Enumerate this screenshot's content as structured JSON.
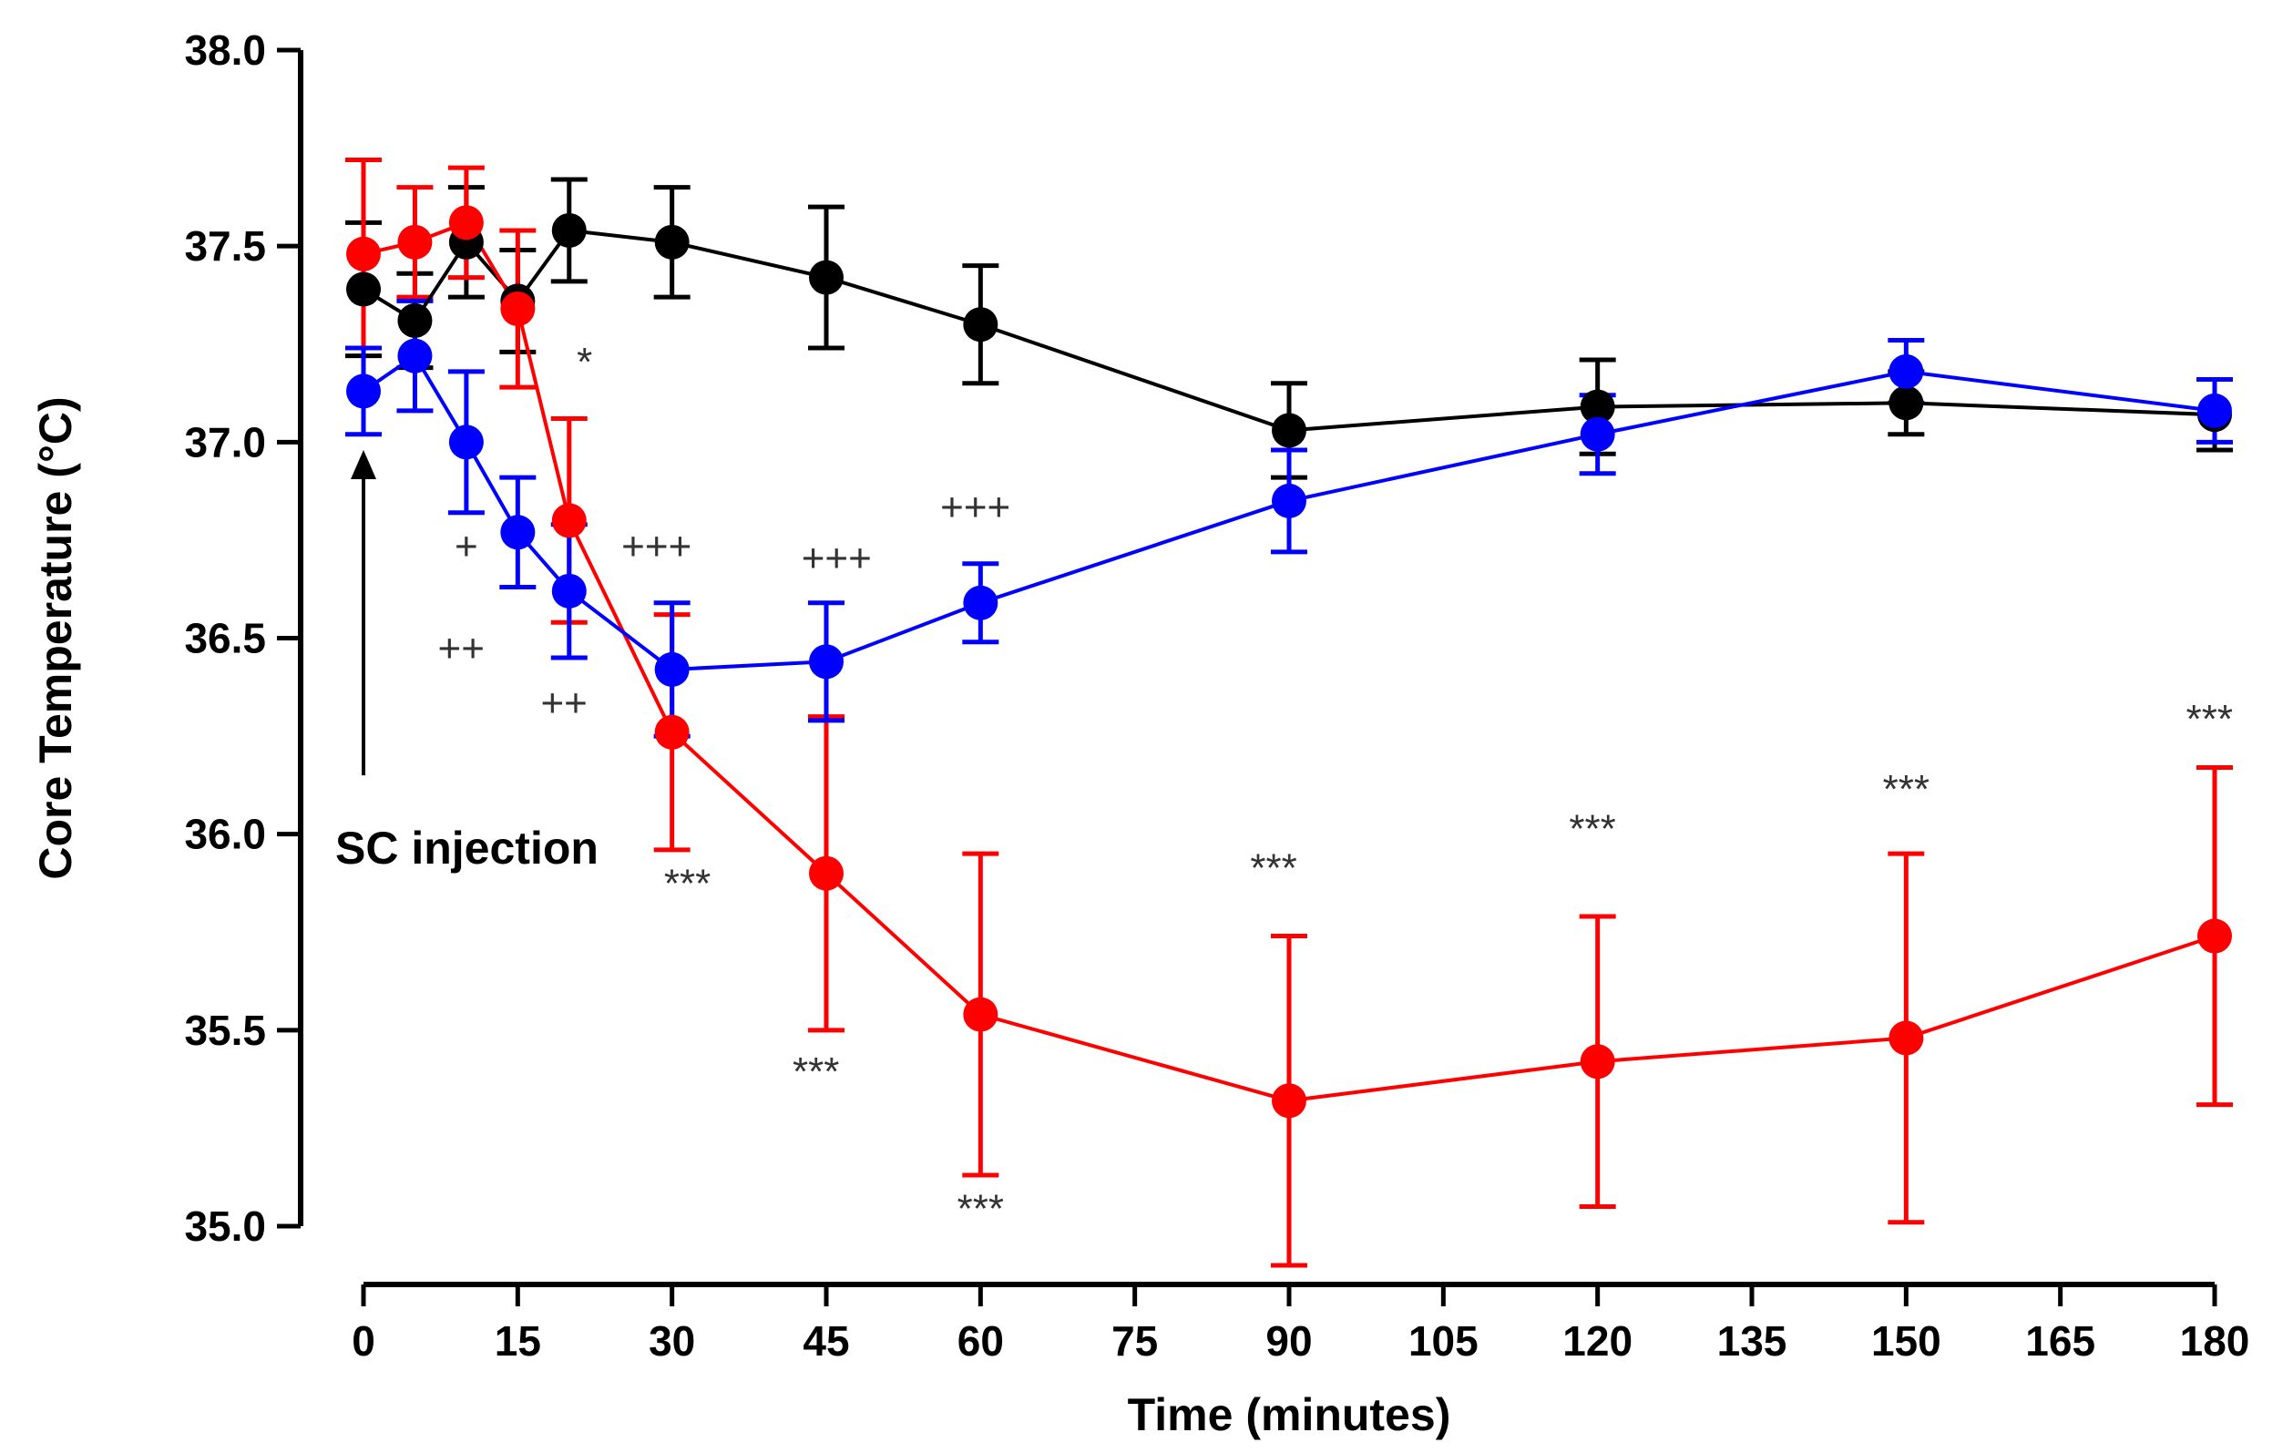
{
  "chart_data": {
    "type": "line",
    "title": "",
    "xlabel": "Time (minutes)",
    "ylabel": "Core Temperature (°C)",
    "xlim": [
      0,
      180
    ],
    "ylim": [
      35.0,
      38.0
    ],
    "xticks": [
      0,
      15,
      30,
      45,
      60,
      75,
      90,
      105,
      120,
      135,
      150,
      165,
      180
    ],
    "yticks": [
      35.0,
      35.5,
      36.0,
      36.5,
      37.0,
      37.5,
      38.0
    ],
    "ytick_labels": [
      "35.0",
      "35.5",
      "36.0",
      "36.5",
      "37.0",
      "37.5",
      "38.0"
    ],
    "grid": false,
    "legend": "none",
    "series": [
      {
        "color": "#000000",
        "x": [
          0,
          5,
          10,
          15,
          20,
          30,
          45,
          60,
          90,
          120,
          150,
          180
        ],
        "y": [
          37.39,
          37.31,
          37.51,
          37.36,
          37.54,
          37.51,
          37.42,
          37.3,
          37.03,
          37.09,
          37.1,
          37.07
        ],
        "err": [
          0.17,
          0.12,
          0.14,
          0.13,
          0.13,
          0.14,
          0.18,
          0.15,
          0.12,
          0.12,
          0.08,
          0.09
        ]
      },
      {
        "color": "#ff0000",
        "x": [
          0,
          5,
          10,
          15,
          20,
          30,
          45,
          60,
          90,
          120,
          150,
          180
        ],
        "y": [
          37.48,
          37.51,
          37.56,
          37.34,
          36.8,
          36.26,
          35.9,
          35.54,
          35.32,
          35.42,
          35.48,
          35.74
        ],
        "err": [
          0.24,
          0.14,
          0.14,
          0.2,
          0.26,
          0.3,
          0.4,
          0.41,
          0.42,
          0.37,
          0.47,
          0.43
        ]
      },
      {
        "color": "#0000ff",
        "x": [
          0,
          5,
          10,
          15,
          20,
          30,
          45,
          60,
          90,
          120,
          150,
          180
        ],
        "y": [
          37.13,
          37.22,
          37.0,
          36.77,
          36.62,
          36.42,
          36.44,
          36.59,
          36.85,
          37.02,
          37.18,
          37.08
        ],
        "err": [
          0.11,
          0.14,
          0.18,
          0.14,
          0.17,
          0.17,
          0.15,
          0.1,
          0.13,
          0.1,
          0.08,
          0.08
        ]
      }
    ],
    "annotations": [
      {
        "text": "*",
        "x": 21.5,
        "y": 37.17
      },
      {
        "text": "+",
        "x": 10.0,
        "y": 36.7
      },
      {
        "text": "++",
        "x": 9.5,
        "y": 36.44
      },
      {
        "text": "++",
        "x": 19.5,
        "y": 36.3
      },
      {
        "text": "+++",
        "x": 28.5,
        "y": 36.7
      },
      {
        "text": "+++",
        "x": 46.0,
        "y": 36.67
      },
      {
        "text": "+++",
        "x": 59.5,
        "y": 36.8
      },
      {
        "text": "***",
        "x": 31.5,
        "y": 35.84
      },
      {
        "text": "***",
        "x": 44.0,
        "y": 35.36
      },
      {
        "text": "***",
        "x": 60.0,
        "y": 35.01
      },
      {
        "text": "***",
        "x": 88.5,
        "y": 35.88
      },
      {
        "text": "***",
        "x": 119.5,
        "y": 35.98
      },
      {
        "text": "***",
        "x": 150.0,
        "y": 36.08
      },
      {
        "text": "***",
        "x": 179.5,
        "y": 36.26
      }
    ],
    "arrow_annotation": {
      "text": "SC injection",
      "x": 0,
      "y_from": 36.15,
      "y_to": 36.98
    }
  }
}
